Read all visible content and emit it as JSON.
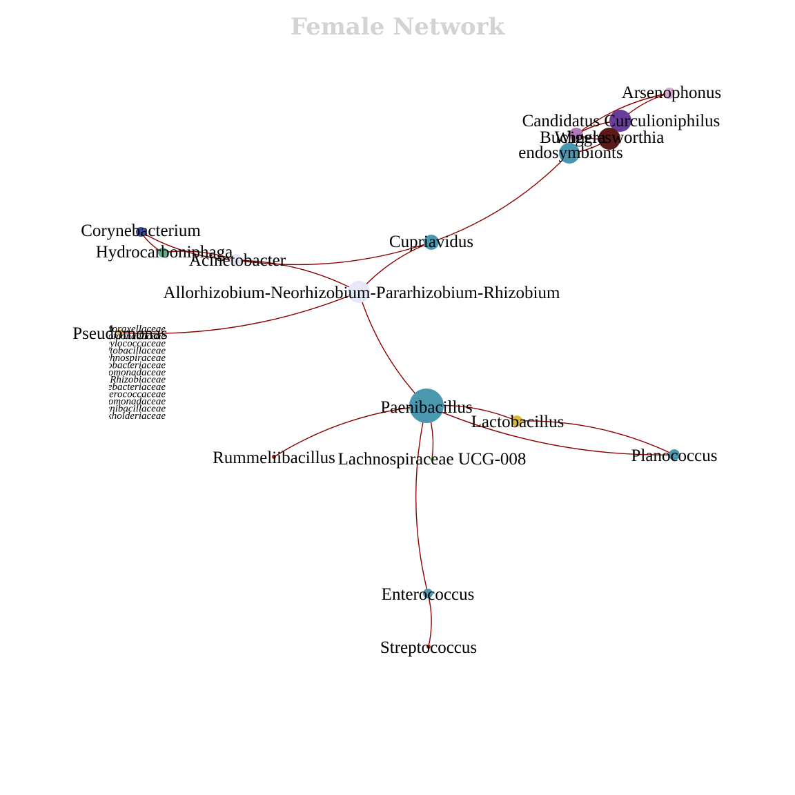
{
  "title": "Female Network",
  "colors": {
    "edge": "#8b0000",
    "title": "#d3d3d3"
  },
  "nodes": [
    {
      "id": "paenibacillus",
      "label": "Paenibacillus",
      "color": "#4a97b0"
    },
    {
      "id": "allorhizobium",
      "label": "Allorhizobium-Neorhizobium-Pararhizobium-Rhizobium",
      "color": "#e6e8f8"
    },
    {
      "id": "cupriavidus",
      "label": "Cupriavidus",
      "color": "#4a97b0"
    },
    {
      "id": "acinetobacter",
      "label": "Acinetobacter",
      "color": "#e6e8f8"
    },
    {
      "id": "corynebacterium",
      "label": "Corynebacterium",
      "color": "#3b4fa0"
    },
    {
      "id": "hydrocarboniphaga",
      "label": "Hydrocarboniphaga",
      "color": "#5fae8a"
    },
    {
      "id": "pseudomonas",
      "label": "Pseudomonas",
      "color": "#e6a14a"
    },
    {
      "id": "arsenophonus",
      "label": "Arsenophonus",
      "color": "#d7a9d2"
    },
    {
      "id": "candidatus",
      "label": "Candidatus Curculioniphilus",
      "color": "#6a3d9a"
    },
    {
      "id": "buchnera",
      "label": "Buchnera",
      "color": "#b07ab8"
    },
    {
      "id": "wigglesworthia",
      "label": "Wigglesworthia",
      "color": "#5a1a1a"
    },
    {
      "id": "endosymbionts",
      "label": "endosymbionts",
      "color": "#4a97b0"
    },
    {
      "id": "lactobacillus",
      "label": "Lactobacillus",
      "color": "#d6b83a"
    },
    {
      "id": "planococcus",
      "label": "Planococcus",
      "color": "#4a97b0"
    },
    {
      "id": "rummeliibacillus",
      "label": "Rummeliibacillus",
      "color": "#b22222"
    },
    {
      "id": "lachnospiraceae",
      "label": "Lachnospiraceae UCG-008",
      "color": "#8fbc5a"
    },
    {
      "id": "enterococcus",
      "label": "Enterococcus",
      "color": "#4a97b0"
    },
    {
      "id": "streptococcus",
      "label": "Streptococcus",
      "color": "#b22222"
    }
  ],
  "edges": [
    [
      "allorhizobium",
      "paenibacillus"
    ],
    [
      "allorhizobium",
      "cupriavidus"
    ],
    [
      "allorhizobium",
      "acinetobacter"
    ],
    [
      "allorhizobium",
      "pseudomonas"
    ],
    [
      "cupriavidus",
      "endosymbionts"
    ],
    [
      "cupriavidus",
      "acinetobacter"
    ],
    [
      "acinetobacter",
      "hydrocarboniphaga"
    ],
    [
      "acinetobacter",
      "corynebacterium"
    ],
    [
      "corynebacterium",
      "hydrocarboniphaga"
    ],
    [
      "paenibacillus",
      "lactobacillus"
    ],
    [
      "paenibacillus",
      "planococcus"
    ],
    [
      "lactobacillus",
      "planococcus"
    ],
    [
      "paenibacillus",
      "rummeliibacillus"
    ],
    [
      "paenibacillus",
      "lachnospiraceae"
    ],
    [
      "paenibacillus",
      "enterococcus"
    ],
    [
      "enterococcus",
      "streptococcus"
    ],
    [
      "endosymbionts",
      "wigglesworthia"
    ],
    [
      "endosymbionts",
      "buchnera"
    ],
    [
      "buchnera",
      "wigglesworthia"
    ],
    [
      "buchnera",
      "candidatus"
    ],
    [
      "candidatus",
      "wigglesworthia"
    ],
    [
      "candidatus",
      "arsenophonus"
    ],
    [
      "arsenophonus",
      "buchnera"
    ]
  ],
  "legend_labels": [
    "Moraxellaceae",
    "Pseudomonadaceae",
    "Staphylococcaceae",
    "Lactobacillaceae",
    "Lachnospiraceae",
    "Carnobacteriaceae",
    "Xanthomonadaceae",
    "Rhizobiaceae",
    "Corynebacteriaceae",
    "Enterococcaceae",
    "Xanthomonadaceae",
    "Paenibacillaceae",
    "Burkholderiaceae"
  ]
}
